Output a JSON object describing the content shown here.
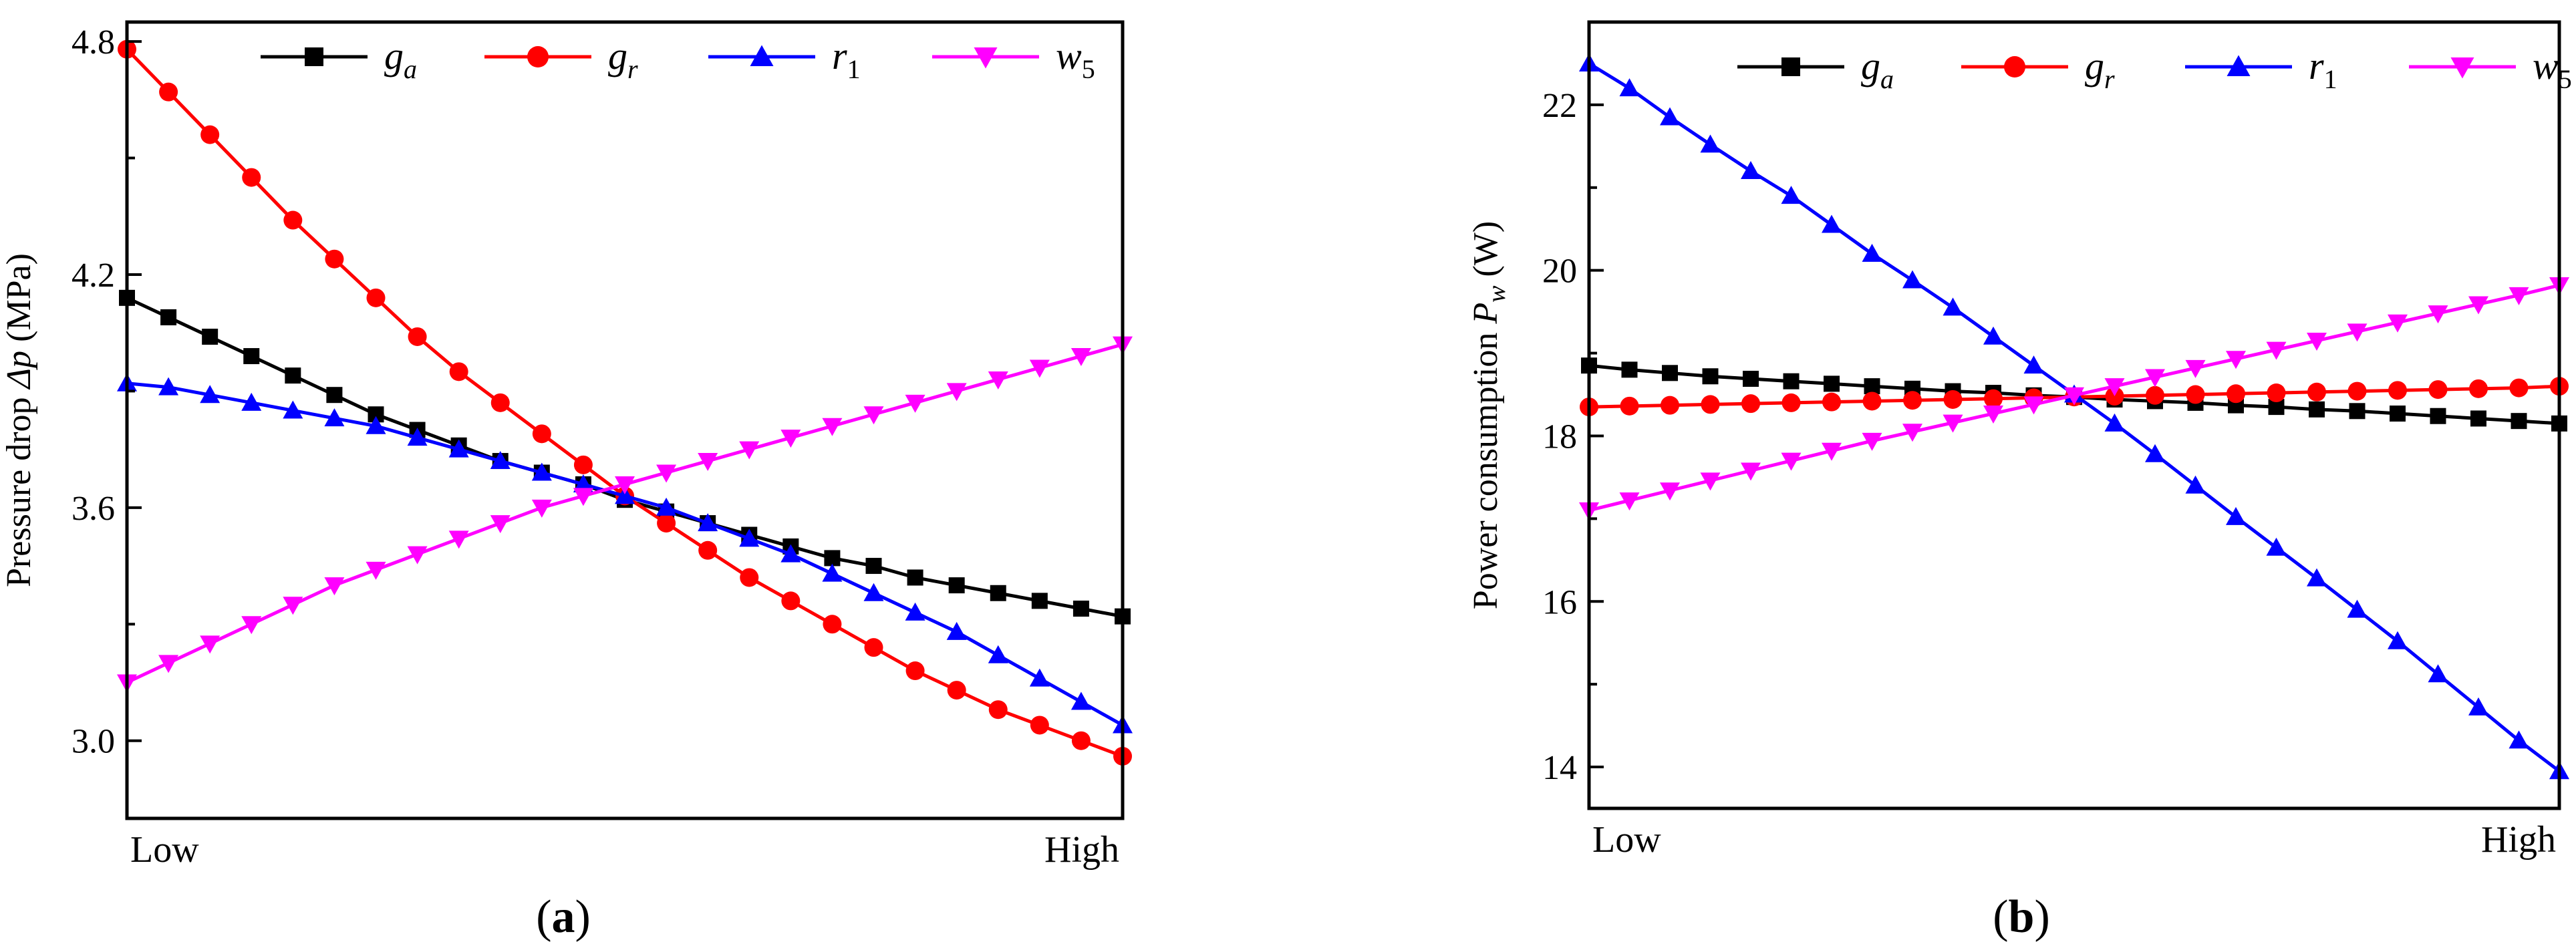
{
  "chart_data": [
    {
      "type": "line",
      "panel_label": "a",
      "title": "",
      "ylabel_pre": "Pressure drop ",
      "ylabel_symbol": "Δp",
      "ylabel_unit": " (MPa)",
      "xlabel": "",
      "x_tick_labels": [
        "Low",
        "High"
      ],
      "ylim": [
        2.8,
        4.85
      ],
      "yticks": [
        "3.0",
        "3.6",
        "4.2",
        "4.8"
      ],
      "ytick_values": [
        3.0,
        3.6,
        4.2,
        4.8
      ],
      "n_points": 25,
      "legend_position": "top",
      "series": [
        {
          "name": "g",
          "sub": "a",
          "color": "#000000",
          "marker": "square",
          "values": [
            4.14,
            4.09,
            4.04,
            3.99,
            3.94,
            3.89,
            3.84,
            3.8,
            3.76,
            3.72,
            3.69,
            3.66,
            3.62,
            3.59,
            3.56,
            3.53,
            3.5,
            3.47,
            3.45,
            3.42,
            3.4,
            3.38,
            3.36,
            3.34,
            3.32
          ]
        },
        {
          "name": "g",
          "sub": "r",
          "color": "#ff0000",
          "marker": "circle",
          "values": [
            4.78,
            4.67,
            4.56,
            4.45,
            4.34,
            4.24,
            4.14,
            4.04,
            3.95,
            3.87,
            3.79,
            3.71,
            3.63,
            3.56,
            3.49,
            3.42,
            3.36,
            3.3,
            3.24,
            3.18,
            3.13,
            3.08,
            3.04,
            3.0,
            2.96
          ]
        },
        {
          "name": "r",
          "sub": "1",
          "color": "#0000ff",
          "marker": "triangle-up",
          "values": [
            3.92,
            3.91,
            3.89,
            3.87,
            3.85,
            3.83,
            3.81,
            3.78,
            3.75,
            3.72,
            3.69,
            3.66,
            3.63,
            3.6,
            3.56,
            3.52,
            3.48,
            3.43,
            3.38,
            3.33,
            3.28,
            3.22,
            3.16,
            3.1,
            3.04
          ]
        },
        {
          "name": "w",
          "sub": "5",
          "color": "#ff00ff",
          "marker": "triangle-down",
          "values": [
            3.15,
            3.2,
            3.25,
            3.3,
            3.35,
            3.4,
            3.44,
            3.48,
            3.52,
            3.56,
            3.6,
            3.63,
            3.66,
            3.69,
            3.72,
            3.75,
            3.78,
            3.81,
            3.84,
            3.87,
            3.9,
            3.93,
            3.96,
            3.99,
            4.02
          ]
        }
      ]
    },
    {
      "type": "line",
      "panel_label": "b",
      "title": "",
      "ylabel_pre": "Power consumption ",
      "ylabel_symbol": "P",
      "ylabel_sub": "w",
      "ylabel_unit": " (W)",
      "xlabel": "",
      "x_tick_labels": [
        "Low",
        "High"
      ],
      "ylim": [
        13.5,
        23.0
      ],
      "yticks": [
        "14",
        "16",
        "18",
        "20",
        "22"
      ],
      "ytick_values": [
        14,
        16,
        18,
        20,
        22
      ],
      "n_points": 25,
      "legend_position": "top",
      "series": [
        {
          "name": "g",
          "sub": "a",
          "color": "#000000",
          "marker": "square",
          "values": [
            18.85,
            18.8,
            18.76,
            18.72,
            18.69,
            18.66,
            18.63,
            18.6,
            18.57,
            18.54,
            18.52,
            18.49,
            18.47,
            18.44,
            18.42,
            18.4,
            18.37,
            18.35,
            18.32,
            18.3,
            18.27,
            18.24,
            18.21,
            18.18,
            18.15
          ]
        },
        {
          "name": "g",
          "sub": "r",
          "color": "#ff0000",
          "marker": "circle",
          "values": [
            18.35,
            18.36,
            18.37,
            18.38,
            18.39,
            18.4,
            18.41,
            18.42,
            18.43,
            18.44,
            18.45,
            18.46,
            18.47,
            18.48,
            18.49,
            18.5,
            18.51,
            18.52,
            18.53,
            18.54,
            18.55,
            18.56,
            18.57,
            18.58,
            18.6
          ]
        },
        {
          "name": "r",
          "sub": "1",
          "color": "#0000ff",
          "marker": "triangle-up",
          "values": [
            22.5,
            22.2,
            21.85,
            21.52,
            21.2,
            20.9,
            20.55,
            20.2,
            19.88,
            19.55,
            19.2,
            18.85,
            18.5,
            18.15,
            17.78,
            17.4,
            17.02,
            16.65,
            16.28,
            15.9,
            15.52,
            15.12,
            14.72,
            14.32,
            13.95
          ]
        },
        {
          "name": "w",
          "sub": "5",
          "color": "#ff00ff",
          "marker": "triangle-down",
          "values": [
            17.1,
            17.22,
            17.34,
            17.46,
            17.58,
            17.7,
            17.82,
            17.94,
            18.05,
            18.16,
            18.27,
            18.38,
            18.49,
            18.6,
            18.71,
            18.82,
            18.93,
            19.04,
            19.15,
            19.26,
            19.37,
            19.48,
            19.59,
            19.7,
            19.82
          ]
        }
      ]
    }
  ]
}
